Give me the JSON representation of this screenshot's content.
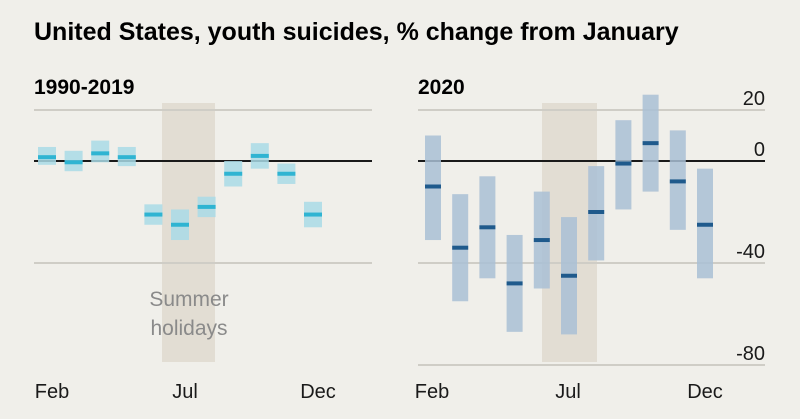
{
  "title": "United States, youth suicides, % change from January",
  "colors": {
    "background": "#f0efea",
    "grid": "#cfcdc6",
    "zero_line": "#1a1a1a",
    "shade": "#e2ddd3",
    "left_band": "#a9dbe6",
    "left_mark": "#2fb4d2",
    "right_band": "#a9bfd5",
    "right_mark": "#1f5a8c",
    "annotation_text": "#8a8a8a"
  },
  "chart_data": [
    {
      "type": "interval",
      "title": "1990-2019",
      "categories": [
        "Feb",
        "Mar",
        "Apr",
        "May",
        "Jun",
        "Jul",
        "Aug",
        "Sep",
        "Oct",
        "Nov",
        "Dec"
      ],
      "tick_labels": [
        "Feb",
        "Jul",
        "Dec"
      ],
      "ylim": [
        -80,
        25
      ],
      "gridlines": [
        0,
        -40
      ],
      "series": [
        {
          "values": [
            1.5,
            -0.5,
            3,
            1.5,
            -21,
            -25,
            -18,
            -5,
            2,
            -5,
            -21
          ],
          "lower": [
            -1.5,
            -4,
            -0.5,
            -2,
            -25,
            -31,
            -22,
            -10,
            -3,
            -9,
            -26
          ],
          "upper": [
            5.5,
            4,
            8,
            5.5,
            -17,
            -19,
            -14,
            0,
            7,
            -1,
            -16
          ]
        }
      ],
      "annotation": {
        "lines": [
          "Summer",
          "holidays"
        ],
        "shaded_range": [
          "Jun",
          "Jul"
        ]
      }
    },
    {
      "type": "interval",
      "title": "2020",
      "categories": [
        "Feb",
        "Mar",
        "Apr",
        "May",
        "Jun",
        "Jul",
        "Aug",
        "Sep",
        "Oct",
        "Nov",
        "Dec"
      ],
      "tick_labels": [
        "Feb",
        "Jul",
        "Dec"
      ],
      "ylim": [
        -80,
        25
      ],
      "gridlines": [
        20,
        0,
        -40,
        -80
      ],
      "y_tick_labels": [
        "20",
        "0",
        "-40",
        "-80"
      ],
      "series": [
        {
          "values": [
            -10,
            -34,
            -26,
            -48,
            -31,
            -45,
            -20,
            -1,
            7,
            -8,
            -25
          ],
          "lower": [
            -31,
            -55,
            -46,
            -67,
            -50,
            -68,
            -39,
            -19,
            -12,
            -27,
            -46
          ],
          "upper": [
            10,
            -13,
            -6,
            -29,
            -12,
            -22,
            -2,
            16,
            26,
            12,
            -3
          ]
        }
      ],
      "shaded_range": [
        "Jun",
        "Jul"
      ]
    }
  ]
}
